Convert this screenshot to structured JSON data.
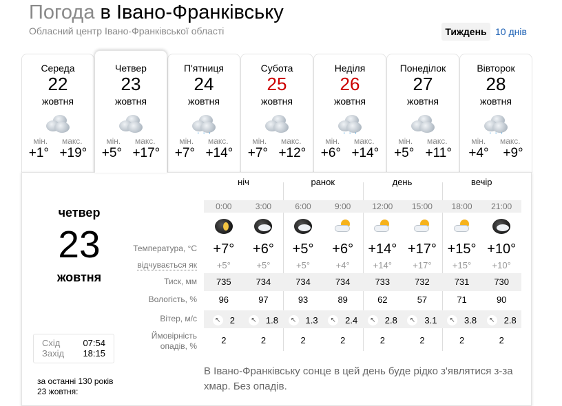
{
  "header": {
    "title_prefix": "Погода",
    "title_city": "в Івано-Франківську",
    "subtitle": "Обласний центр Івано-Франківської області",
    "week_label": "Тиждень",
    "ten_days_label": "10 днів"
  },
  "days": [
    {
      "name": "Середа",
      "date": "22",
      "month": "жовтня",
      "icon": "overcast",
      "min_label": "мін.",
      "max_label": "макс.",
      "min": "+1°",
      "max": "+19°",
      "weekend": false
    },
    {
      "name": "Четвер",
      "date": "23",
      "month": "жовтня",
      "icon": "overcast",
      "min_label": "мін.",
      "max_label": "макс.",
      "min": "+5°",
      "max": "+17°",
      "weekend": false,
      "active": true
    },
    {
      "name": "П'ятниця",
      "date": "24",
      "month": "жовтня",
      "icon": "overcast-rain",
      "min_label": "мін.",
      "max_label": "макс.",
      "min": "+7°",
      "max": "+14°",
      "weekend": false
    },
    {
      "name": "Субота",
      "date": "25",
      "month": "жовтня",
      "icon": "overcast",
      "min_label": "мін.",
      "max_label": "макс.",
      "min": "+7°",
      "max": "+12°",
      "weekend": true
    },
    {
      "name": "Неділя",
      "date": "26",
      "month": "жовтня",
      "icon": "overcast-light-rain",
      "min_label": "мін.",
      "max_label": "макс.",
      "min": "+6°",
      "max": "+14°",
      "weekend": true
    },
    {
      "name": "Понеділок",
      "date": "27",
      "month": "жовтня",
      "icon": "overcast",
      "min_label": "мін.",
      "max_label": "макс.",
      "min": "+5°",
      "max": "+11°",
      "weekend": false
    },
    {
      "name": "Вівторок",
      "date": "28",
      "month": "жовтня",
      "icon": "overcast-light-rain",
      "min_label": "мін.",
      "max_label": "макс.",
      "min": "+4°",
      "max": "+9°",
      "weekend": false
    }
  ],
  "weekend_color": "#cc0000",
  "detail": {
    "day": "четвер",
    "date": "23",
    "month": "жовтня",
    "sunrise_label": "Схід",
    "sunrise": "07:54",
    "sunset_label": "Захід",
    "sunset": "18:15",
    "history": "за останні 130 років 23 жовтня:",
    "groups": [
      "ніч",
      "ранок",
      "день",
      "вечір"
    ],
    "hours": [
      "0:00",
      "3:00",
      "6:00",
      "9:00",
      "12:00",
      "15:00",
      "18:00",
      "21:00"
    ],
    "icons": [
      "night-clear",
      "night-partly-cloudy",
      "night-cloudy",
      "partly-cloudy",
      "sun-cloud",
      "sun-cloud",
      "sun-cloud",
      "night-partly-cloudy"
    ],
    "labels": {
      "temp": "Температура, °C",
      "feels": "відчувається як",
      "pressure": "Тиск, мм",
      "humidity": "Вологість, %",
      "wind": "Вітер, м/с",
      "precip": "Ймовірність опадів, %"
    },
    "temp": [
      "+7°",
      "+6°",
      "+5°",
      "+6°",
      "+14°",
      "+17°",
      "+15°",
      "+10°"
    ],
    "feels": [
      "+5°",
      "+5°",
      "+5°",
      "+4°",
      "+14°",
      "+17°",
      "+15°",
      "+10°"
    ],
    "pressure": [
      "735",
      "734",
      "734",
      "734",
      "733",
      "732",
      "731",
      "730"
    ],
    "humidity": [
      "96",
      "97",
      "93",
      "89",
      "62",
      "57",
      "71",
      "90"
    ],
    "wind_direction": "north-west",
    "wind": [
      "2",
      "1.8",
      "1.3",
      "2.4",
      "2.8",
      "3.1",
      "3.8",
      "2.8"
    ],
    "precip": [
      "2",
      "2",
      "2",
      "2",
      "2",
      "2",
      "2",
      "2"
    ],
    "description": "В Івано-Франківську сонце в цей день буде рідко з'являтися з-за хмар. Без опадів."
  }
}
